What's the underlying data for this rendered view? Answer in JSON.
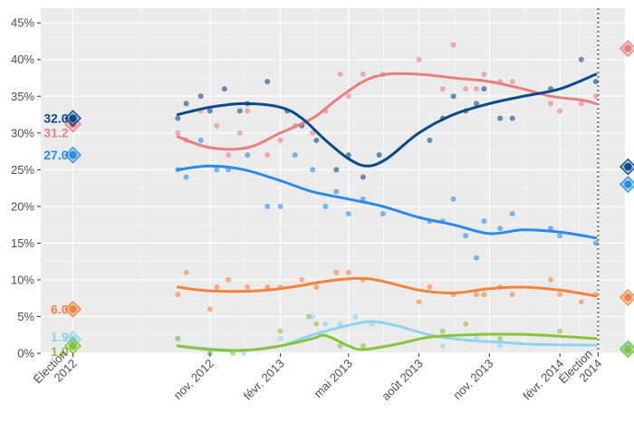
{
  "chart_data": {
    "type": "line",
    "title": "",
    "xlabel": "",
    "ylabel": "",
    "ylim": [
      0,
      47
    ],
    "y_ticks": [
      0,
      5,
      10,
      15,
      20,
      25,
      30,
      35,
      40,
      45
    ],
    "y_tick_labels": [
      "0%",
      "5%",
      "10%",
      "15%",
      "20%",
      "25%",
      "30%",
      "35%",
      "40%",
      "45%"
    ],
    "x_ticks": [
      {
        "date": "2012-05-06",
        "label": [
          "Élection",
          "2012"
        ]
      },
      {
        "date": "2012-11-01",
        "label": [
          "nov. 2012"
        ]
      },
      {
        "date": "2013-02-01",
        "label": [
          "févr. 2013"
        ]
      },
      {
        "date": "2013-05-01",
        "label": [
          "mai 2013"
        ]
      },
      {
        "date": "2013-08-01",
        "label": [
          "août 2013"
        ]
      },
      {
        "date": "2013-11-01",
        "label": [
          "nov. 2013"
        ]
      },
      {
        "date": "2014-02-01",
        "label": [
          "févr. 2014"
        ]
      },
      {
        "date": "2014-03-23",
        "label": [
          "Élection",
          "2014"
        ]
      }
    ],
    "x_range": [
      "2012-03-25",
      "2014-04-27"
    ],
    "election_line_date": "2014-03-23",
    "grid": true,
    "series": [
      {
        "color": "#e88080",
        "election_2012": 31.2,
        "election_2014": 41.5,
        "label_2012": "31.2",
        "label_2014": "41.5",
        "trend": [
          [
            "2012-09-20",
            29.5
          ],
          [
            "2012-11-01",
            28.0
          ],
          [
            "2012-12-20",
            28.0
          ],
          [
            "2013-02-01",
            30.0
          ],
          [
            "2013-03-15",
            32.0
          ],
          [
            "2013-04-15",
            34.5
          ],
          [
            "2013-05-20",
            37.0
          ],
          [
            "2013-06-20",
            38.0
          ],
          [
            "2013-08-01",
            38.0
          ],
          [
            "2013-09-15",
            37.5
          ],
          [
            "2013-11-01",
            37.0
          ],
          [
            "2013-12-15",
            36.0
          ],
          [
            "2014-01-20",
            35.0
          ],
          [
            "2014-03-01",
            34.5
          ],
          [
            "2014-03-20",
            34.0
          ]
        ],
        "polls": [
          [
            "2012-09-20",
            30
          ],
          [
            "2012-10-01",
            29
          ],
          [
            "2012-10-20",
            33
          ],
          [
            "2012-11-10",
            31
          ],
          [
            "2012-11-25",
            27
          ],
          [
            "2012-12-10",
            30
          ],
          [
            "2012-12-20",
            33
          ],
          [
            "2013-01-15",
            27
          ],
          [
            "2013-02-01",
            29
          ],
          [
            "2013-02-20",
            31
          ],
          [
            "2013-03-15",
            30
          ],
          [
            "2013-04-01",
            33
          ],
          [
            "2013-04-20",
            38
          ],
          [
            "2013-05-01",
            35
          ],
          [
            "2013-05-20",
            38
          ],
          [
            "2013-06-15",
            38
          ],
          [
            "2013-08-01",
            40
          ],
          [
            "2013-09-01",
            36
          ],
          [
            "2013-09-15",
            42
          ],
          [
            "2013-10-01",
            36
          ],
          [
            "2013-10-15",
            36
          ],
          [
            "2013-10-25",
            38
          ],
          [
            "2013-11-15",
            37
          ],
          [
            "2013-12-01",
            37
          ],
          [
            "2014-01-20",
            34
          ],
          [
            "2014-02-01",
            33
          ],
          [
            "2014-03-01",
            34
          ],
          [
            "2014-03-20",
            35
          ]
        ]
      },
      {
        "color": "#0a4a8c",
        "election_2012": 32.0,
        "election_2014": 25.4,
        "label_2012": "32.0",
        "label_2014": "25.4",
        "trend": [
          [
            "2012-09-20",
            32.5
          ],
          [
            "2012-11-01",
            33.5
          ],
          [
            "2012-12-15",
            34.0
          ],
          [
            "2013-02-01",
            33.5
          ],
          [
            "2013-03-01",
            32.0
          ],
          [
            "2013-04-01",
            29.0
          ],
          [
            "2013-05-01",
            26.5
          ],
          [
            "2013-05-25",
            25.5
          ],
          [
            "2013-06-20",
            26.5
          ],
          [
            "2013-08-01",
            30.0
          ],
          [
            "2013-09-15",
            32.5
          ],
          [
            "2013-11-01",
            34.0
          ],
          [
            "2013-12-15",
            35.0
          ],
          [
            "2014-02-01",
            36.0
          ],
          [
            "2014-03-20",
            38.0
          ]
        ],
        "polls": [
          [
            "2012-09-20",
            32
          ],
          [
            "2012-10-01",
            34
          ],
          [
            "2012-10-20",
            35
          ],
          [
            "2012-11-01",
            33
          ],
          [
            "2012-11-20",
            36
          ],
          [
            "2012-12-10",
            33
          ],
          [
            "2012-12-20",
            34
          ],
          [
            "2013-01-15",
            37
          ],
          [
            "2013-02-10",
            33
          ],
          [
            "2013-03-01",
            31
          ],
          [
            "2013-03-20",
            29
          ],
          [
            "2013-04-15",
            25
          ],
          [
            "2013-05-01",
            27
          ],
          [
            "2013-05-20",
            24
          ],
          [
            "2013-06-10",
            27
          ],
          [
            "2013-08-15",
            29
          ],
          [
            "2013-09-01",
            32
          ],
          [
            "2013-09-15",
            35
          ],
          [
            "2013-10-01",
            33
          ],
          [
            "2013-10-15",
            34
          ],
          [
            "2013-10-25",
            36
          ],
          [
            "2013-11-15",
            32
          ],
          [
            "2013-12-01",
            32
          ],
          [
            "2014-01-20",
            36
          ],
          [
            "2014-03-01",
            40
          ],
          [
            "2014-03-20",
            37
          ]
        ]
      },
      {
        "color": "#2a8ce8",
        "election_2012": 27.0,
        "election_2014": 23.0,
        "label_2012": "27.0",
        "label_2014": "23.0",
        "trend": [
          [
            "2012-09-20",
            25.0
          ],
          [
            "2012-11-01",
            25.5
          ],
          [
            "2012-12-15",
            25.0
          ],
          [
            "2013-02-01",
            23.5
          ],
          [
            "2013-03-15",
            22.0
          ],
          [
            "2013-05-01",
            21.0
          ],
          [
            "2013-06-15",
            20.0
          ],
          [
            "2013-08-01",
            18.5
          ],
          [
            "2013-09-15",
            17.5
          ],
          [
            "2013-11-01",
            16.3
          ],
          [
            "2013-12-15",
            16.8
          ],
          [
            "2014-02-01",
            16.5
          ],
          [
            "2014-03-20",
            15.7
          ]
        ],
        "polls": [
          [
            "2012-09-20",
            25
          ],
          [
            "2012-10-01",
            24
          ],
          [
            "2012-10-20",
            29
          ],
          [
            "2012-11-10",
            25
          ],
          [
            "2012-11-25",
            25
          ],
          [
            "2012-12-20",
            27
          ],
          [
            "2013-01-15",
            20
          ],
          [
            "2013-02-01",
            20
          ],
          [
            "2013-02-20",
            27
          ],
          [
            "2013-03-15",
            25
          ],
          [
            "2013-04-01",
            20
          ],
          [
            "2013-04-15",
            22
          ],
          [
            "2013-05-01",
            19
          ],
          [
            "2013-05-20",
            21
          ],
          [
            "2013-06-15",
            19
          ],
          [
            "2013-08-15",
            18
          ],
          [
            "2013-09-01",
            18
          ],
          [
            "2013-09-15",
            21
          ],
          [
            "2013-10-01",
            16
          ],
          [
            "2013-10-15",
            13
          ],
          [
            "2013-10-25",
            18
          ],
          [
            "2013-11-15",
            17
          ],
          [
            "2013-12-01",
            19
          ],
          [
            "2014-01-20",
            17
          ],
          [
            "2014-02-01",
            16
          ],
          [
            "2014-03-20",
            15
          ]
        ]
      },
      {
        "color": "#f5823c",
        "election_2012": 6.0,
        "election_2014": 7.6,
        "label_2012": "6.0",
        "label_2014": "7.6",
        "trend": [
          [
            "2012-09-20",
            9.0
          ],
          [
            "2012-11-01",
            8.5
          ],
          [
            "2013-01-01",
            8.5
          ],
          [
            "2013-02-15",
            9.0
          ],
          [
            "2013-04-01",
            9.8
          ],
          [
            "2013-05-15",
            10.2
          ],
          [
            "2013-06-15",
            9.8
          ],
          [
            "2013-08-01",
            8.6
          ],
          [
            "2013-09-15",
            8.2
          ],
          [
            "2013-11-01",
            8.8
          ],
          [
            "2013-12-15",
            9.0
          ],
          [
            "2014-02-01",
            8.6
          ],
          [
            "2014-03-20",
            7.8
          ]
        ],
        "polls": [
          [
            "2012-09-20",
            8
          ],
          [
            "2012-10-01",
            11
          ],
          [
            "2012-11-01",
            6
          ],
          [
            "2012-11-10",
            9
          ],
          [
            "2012-11-25",
            10
          ],
          [
            "2012-12-20",
            9
          ],
          [
            "2013-01-15",
            9
          ],
          [
            "2013-02-01",
            9
          ],
          [
            "2013-03-01",
            10
          ],
          [
            "2013-03-20",
            9
          ],
          [
            "2013-04-15",
            11
          ],
          [
            "2013-05-01",
            11
          ],
          [
            "2013-05-20",
            10
          ],
          [
            "2013-08-01",
            7
          ],
          [
            "2013-08-15",
            9
          ],
          [
            "2013-09-15",
            8
          ],
          [
            "2013-10-15",
            8
          ],
          [
            "2013-10-25",
            8
          ],
          [
            "2013-11-15",
            9
          ],
          [
            "2013-12-01",
            8
          ],
          [
            "2014-01-20",
            10
          ],
          [
            "2014-02-01",
            8
          ],
          [
            "2014-03-01",
            7
          ],
          [
            "2014-03-20",
            8
          ]
        ]
      },
      {
        "color": "#8dd4f0",
        "election_2012": 1.9,
        "election_2014": 0.7,
        "label_2012": "1.9",
        "label_2014": "0.7",
        "trend": [
          [
            "2012-09-20",
            1.0
          ],
          [
            "2012-11-01",
            0.6
          ],
          [
            "2012-12-15",
            0.4
          ],
          [
            "2013-02-01",
            1.0
          ],
          [
            "2013-03-15",
            2.5
          ],
          [
            "2013-05-01",
            3.8
          ],
          [
            "2013-06-01",
            4.3
          ],
          [
            "2013-07-01",
            3.8
          ],
          [
            "2013-08-15",
            2.5
          ],
          [
            "2013-10-01",
            1.8
          ],
          [
            "2013-11-15",
            1.5
          ],
          [
            "2014-01-01",
            1.2
          ],
          [
            "2014-03-20",
            1.1
          ]
        ],
        "polls": [
          [
            "2012-09-20",
            2
          ],
          [
            "2012-11-01",
            0
          ],
          [
            "2012-12-15",
            0
          ],
          [
            "2013-02-01",
            2
          ],
          [
            "2013-03-15",
            5
          ],
          [
            "2013-04-01",
            4
          ],
          [
            "2013-04-20",
            4
          ],
          [
            "2013-05-10",
            5
          ],
          [
            "2013-06-01",
            4
          ],
          [
            "2013-09-01",
            1
          ],
          [
            "2013-10-15",
            2
          ],
          [
            "2013-11-15",
            1
          ]
        ]
      },
      {
        "color": "#8ac43c",
        "election_2012": 1.0,
        "election_2014": 0.5,
        "label_2012": "1.0",
        "label_2014": "0.5",
        "trend": [
          [
            "2012-09-20",
            1.0
          ],
          [
            "2012-11-01",
            0.5
          ],
          [
            "2012-12-15",
            0.4
          ],
          [
            "2013-02-01",
            1.0
          ],
          [
            "2013-03-15",
            2.0
          ],
          [
            "2013-04-01",
            2.4
          ],
          [
            "2013-05-01",
            1.0
          ],
          [
            "2013-05-20",
            0.5
          ],
          [
            "2013-07-01",
            1.2
          ],
          [
            "2013-08-15",
            2.2
          ],
          [
            "2013-10-01",
            2.5
          ],
          [
            "2013-11-15",
            2.6
          ],
          [
            "2014-01-01",
            2.5
          ],
          [
            "2014-03-20",
            2.0
          ]
        ],
        "polls": [
          [
            "2012-09-20",
            2
          ],
          [
            "2012-11-01",
            0
          ],
          [
            "2012-12-01",
            0
          ],
          [
            "2013-02-01",
            3
          ],
          [
            "2013-03-10",
            5
          ],
          [
            "2013-03-20",
            4
          ],
          [
            "2013-04-20",
            1
          ],
          [
            "2013-05-20",
            1
          ],
          [
            "2013-09-01",
            3
          ],
          [
            "2013-10-01",
            4
          ],
          [
            "2013-11-15",
            2
          ],
          [
            "2014-02-01",
            3
          ]
        ]
      }
    ]
  }
}
